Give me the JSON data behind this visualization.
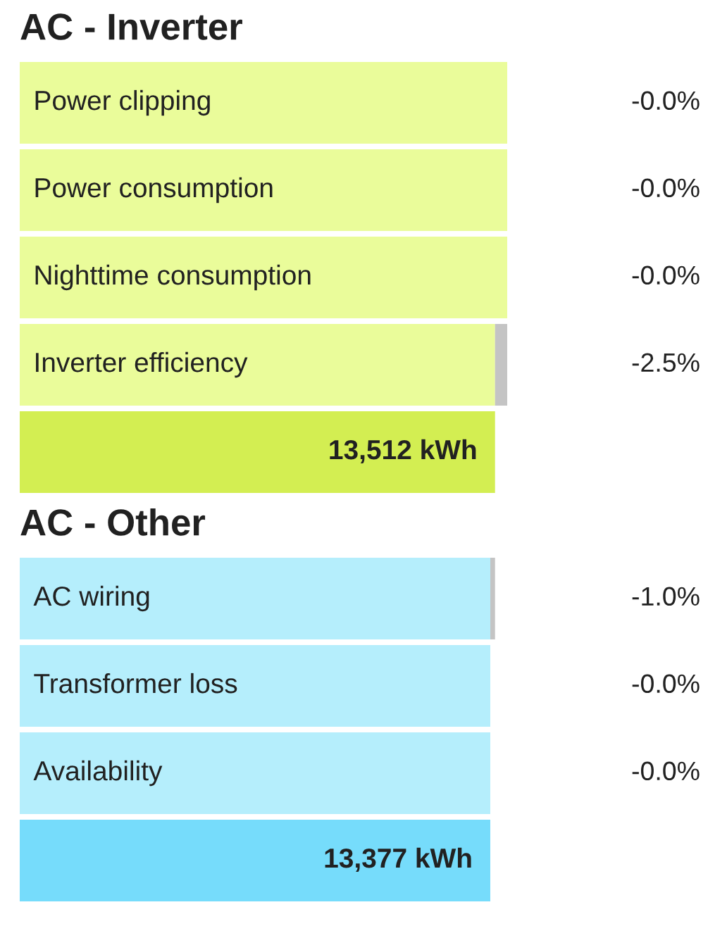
{
  "chart_data": [
    {
      "type": "bar",
      "title": "AC - Inverter",
      "orientation": "horizontal",
      "stacked": true,
      "tick_labels": "y",
      "categories": [
        "Power clipping",
        "Power consumption",
        "Nighttime consumption",
        "Inverter efficiency",
        null
      ],
      "series": [
        {
          "colors": [
            "#eafc9a",
            "#eafc9a",
            "#eafc9a",
            "#eafc9a",
            "#d3ee52"
          ],
          "values": [
            13858,
            13858,
            13858,
            13512,
            13512
          ],
          "value_labels": [
            null,
            null,
            null,
            null,
            "13,512 kWh"
          ]
        },
        {
          "color": "#c4c4c4",
          "values": [
            0,
            0,
            0,
            346,
            null
          ]
        }
      ],
      "annotations": [
        "-0.0%",
        "-0.0%",
        "-0.0%",
        "-2.5%"
      ]
    },
    {
      "type": "bar",
      "title": "AC - Other",
      "orientation": "horizontal",
      "stacked": true,
      "tick_labels": "y",
      "categories": [
        "AC wiring",
        "Transformer loss",
        "Availability",
        null
      ],
      "series": [
        {
          "colors": [
            "#b5eefc",
            "#b5eefc",
            "#b5eefc",
            "#76dcfb"
          ],
          "values": [
            13377,
            13377,
            13377,
            13377
          ],
          "value_labels": [
            null,
            null,
            null,
            "13,377 kWh"
          ]
        },
        {
          "color": "#c4c4c4",
          "values": [
            135,
            0,
            0,
            null
          ]
        }
      ],
      "annotations": [
        "-1.0%",
        "-0.0%",
        "-0.0%"
      ]
    }
  ]
}
